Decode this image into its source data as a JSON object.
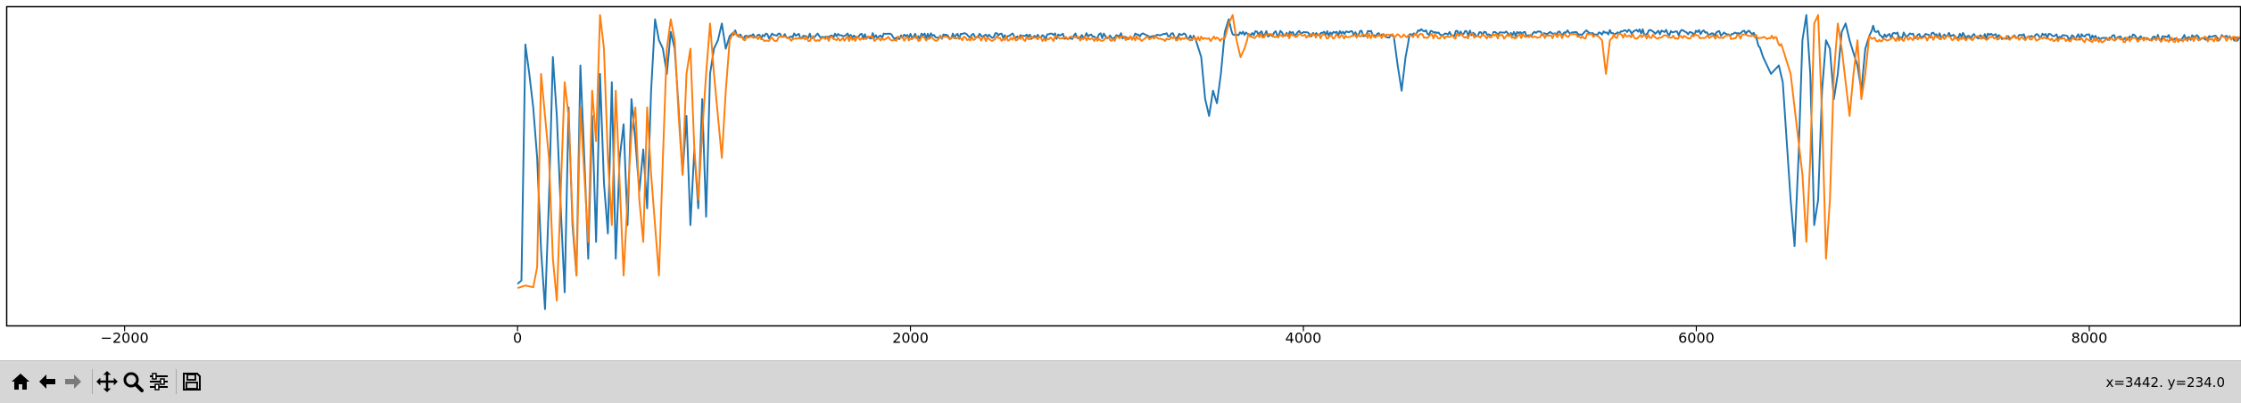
{
  "chart_data": {
    "type": "line",
    "title": "",
    "xlabel": "",
    "ylabel": "",
    "xlim": [
      -2600,
      8770
    ],
    "ylim": [
      0,
      380
    ],
    "xticks": [
      -2000,
      0,
      2000,
      4000,
      6000,
      8000
    ],
    "xtick_labels": [
      "−2000",
      "0",
      "2000",
      "4000",
      "6000",
      "8000"
    ],
    "y_tick_labels_visible": false,
    "grid": false,
    "legend": "none",
    "series": [
      {
        "color": "#1f77b4",
        "baseline": 345,
        "noise": 3.5,
        "points": [
          [
            0,
            50
          ],
          [
            20,
            54
          ],
          [
            40,
            335
          ],
          [
            60,
            300
          ],
          [
            80,
            260
          ],
          [
            100,
            200
          ],
          [
            120,
            90
          ],
          [
            140,
            20
          ],
          [
            160,
            150
          ],
          [
            180,
            320
          ],
          [
            200,
            250
          ],
          [
            220,
            140
          ],
          [
            240,
            40
          ],
          [
            260,
            260
          ],
          [
            280,
            120
          ],
          [
            300,
            60
          ],
          [
            320,
            310
          ],
          [
            340,
            200
          ],
          [
            360,
            80
          ],
          [
            380,
            250
          ],
          [
            400,
            100
          ],
          [
            420,
            300
          ],
          [
            440,
            170
          ],
          [
            460,
            110
          ],
          [
            480,
            290
          ],
          [
            500,
            80
          ],
          [
            520,
            200
          ],
          [
            540,
            240
          ],
          [
            560,
            120
          ],
          [
            580,
            270
          ],
          [
            600,
            220
          ],
          [
            620,
            160
          ],
          [
            640,
            210
          ],
          [
            660,
            140
          ],
          [
            680,
            280
          ],
          [
            700,
            365
          ],
          [
            720,
            340
          ],
          [
            740,
            330
          ],
          [
            760,
            300
          ],
          [
            780,
            350
          ],
          [
            800,
            330
          ],
          [
            820,
            260
          ],
          [
            840,
            180
          ],
          [
            860,
            250
          ],
          [
            880,
            120
          ],
          [
            900,
            210
          ],
          [
            920,
            140
          ],
          [
            940,
            270
          ],
          [
            960,
            130
          ],
          [
            980,
            300
          ],
          [
            1000,
            330
          ],
          [
            1020,
            340
          ],
          [
            1040,
            360
          ],
          [
            1060,
            330
          ],
          [
            1080,
            345
          ],
          [
            1100,
            350
          ],
          [
            1150,
            343
          ],
          [
            1200,
            345
          ],
          [
            3400,
            345
          ],
          [
            3450,
            342
          ],
          [
            3480,
            320
          ],
          [
            3500,
            270
          ],
          [
            3520,
            250
          ],
          [
            3540,
            280
          ],
          [
            3560,
            265
          ],
          [
            3580,
            300
          ],
          [
            3600,
            350
          ],
          [
            3620,
            365
          ],
          [
            3640,
            345
          ],
          [
            3700,
            348
          ],
          [
            4400,
            348
          ],
          [
            4460,
            345
          ],
          [
            4480,
            310
          ],
          [
            4500,
            280
          ],
          [
            4520,
            320
          ],
          [
            4540,
            345
          ],
          [
            4600,
            350
          ],
          [
            5000,
            347
          ],
          [
            5600,
            350
          ],
          [
            6300,
            348
          ],
          [
            6340,
            320
          ],
          [
            6380,
            300
          ],
          [
            6420,
            310
          ],
          [
            6440,
            290
          ],
          [
            6460,
            220
          ],
          [
            6480,
            150
          ],
          [
            6500,
            95
          ],
          [
            6520,
            200
          ],
          [
            6540,
            340
          ],
          [
            6560,
            370
          ],
          [
            6580,
            300
          ],
          [
            6600,
            120
          ],
          [
            6620,
            150
          ],
          [
            6640,
            280
          ],
          [
            6660,
            340
          ],
          [
            6680,
            330
          ],
          [
            6700,
            270
          ],
          [
            6720,
            300
          ],
          [
            6740,
            350
          ],
          [
            6760,
            360
          ],
          [
            6780,
            340
          ],
          [
            6800,
            325
          ],
          [
            6820,
            310
          ],
          [
            6840,
            280
          ],
          [
            6860,
            330
          ],
          [
            6880,
            345
          ],
          [
            6900,
            355
          ],
          [
            6950,
            345
          ],
          [
            7000,
            346
          ],
          [
            7500,
            345
          ],
          [
            8000,
            344
          ],
          [
            8500,
            343
          ],
          [
            8770,
            343
          ]
        ]
      },
      {
        "color": "#ff7f0e",
        "baseline": 342,
        "noise": 3.0,
        "points": [
          [
            0,
            45
          ],
          [
            40,
            48
          ],
          [
            80,
            46
          ],
          [
            100,
            70
          ],
          [
            120,
            300
          ],
          [
            140,
            250
          ],
          [
            160,
            200
          ],
          [
            180,
            80
          ],
          [
            200,
            30
          ],
          [
            220,
            160
          ],
          [
            240,
            290
          ],
          [
            260,
            250
          ],
          [
            280,
            130
          ],
          [
            300,
            60
          ],
          [
            320,
            260
          ],
          [
            340,
            180
          ],
          [
            360,
            100
          ],
          [
            380,
            280
          ],
          [
            400,
            220
          ],
          [
            420,
            370
          ],
          [
            440,
            330
          ],
          [
            460,
            200
          ],
          [
            480,
            120
          ],
          [
            500,
            280
          ],
          [
            520,
            170
          ],
          [
            540,
            60
          ],
          [
            560,
            150
          ],
          [
            580,
            230
          ],
          [
            600,
            260
          ],
          [
            620,
            150
          ],
          [
            640,
            100
          ],
          [
            660,
            260
          ],
          [
            680,
            180
          ],
          [
            700,
            120
          ],
          [
            720,
            60
          ],
          [
            740,
            200
          ],
          [
            760,
            330
          ],
          [
            780,
            365
          ],
          [
            800,
            340
          ],
          [
            820,
            250
          ],
          [
            840,
            180
          ],
          [
            860,
            300
          ],
          [
            880,
            330
          ],
          [
            900,
            210
          ],
          [
            920,
            150
          ],
          [
            940,
            230
          ],
          [
            960,
            300
          ],
          [
            980,
            360
          ],
          [
            1000,
            300
          ],
          [
            1020,
            250
          ],
          [
            1040,
            200
          ],
          [
            1060,
            280
          ],
          [
            1080,
            340
          ],
          [
            1100,
            350
          ],
          [
            1150,
            343
          ],
          [
            1200,
            342
          ],
          [
            3600,
            342
          ],
          [
            3620,
            360
          ],
          [
            3640,
            370
          ],
          [
            3660,
            340
          ],
          [
            3680,
            320
          ],
          [
            3700,
            330
          ],
          [
            3720,
            345
          ],
          [
            3800,
            345
          ],
          [
            5500,
            345
          ],
          [
            5520,
            340
          ],
          [
            5540,
            300
          ],
          [
            5560,
            340
          ],
          [
            5580,
            345
          ],
          [
            6400,
            344
          ],
          [
            6440,
            330
          ],
          [
            6480,
            300
          ],
          [
            6520,
            220
          ],
          [
            6540,
            180
          ],
          [
            6560,
            100
          ],
          [
            6580,
            200
          ],
          [
            6600,
            360
          ],
          [
            6620,
            370
          ],
          [
            6640,
            250
          ],
          [
            6660,
            80
          ],
          [
            6680,
            150
          ],
          [
            6700,
            300
          ],
          [
            6720,
            360
          ],
          [
            6740,
            330
          ],
          [
            6760,
            290
          ],
          [
            6780,
            250
          ],
          [
            6800,
            300
          ],
          [
            6820,
            340
          ],
          [
            6840,
            270
          ],
          [
            6860,
            300
          ],
          [
            6880,
            345
          ],
          [
            6900,
            340
          ],
          [
            7000,
            342
          ],
          [
            7500,
            343
          ],
          [
            8000,
            340
          ],
          [
            8500,
            341
          ],
          [
            8770,
            342
          ]
        ]
      }
    ]
  },
  "toolbar": {
    "buttons": [
      {
        "name": "home-button",
        "icon": "home-icon"
      },
      {
        "name": "back-button",
        "icon": "arrow-left-icon"
      },
      {
        "name": "forward-button",
        "icon": "arrow-right-icon"
      },
      {
        "name": "pan-button",
        "icon": "move-icon"
      },
      {
        "name": "zoom-button",
        "icon": "magnifier-icon"
      },
      {
        "name": "configure-subplots-button",
        "icon": "sliders-icon"
      },
      {
        "name": "save-button",
        "icon": "floppy-disk-icon"
      }
    ],
    "coordinates": "x=3442. y=234.0"
  }
}
